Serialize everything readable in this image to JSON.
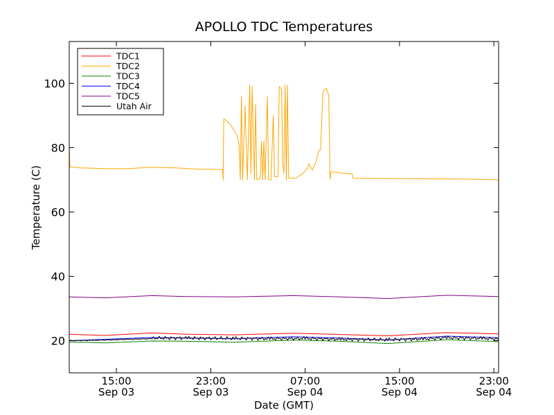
{
  "chart_data": {
    "type": "line",
    "title": "APOLLO TDC Temperatures",
    "xlabel": "Date (GMT)",
    "ylabel": "Temperature (C)",
    "x_unit": "hours since Sep 03 11:00 GMT",
    "xlim": [
      0,
      36.4
    ],
    "ylim": [
      10,
      113
    ],
    "yticks": [
      20,
      40,
      60,
      80,
      100
    ],
    "xticks": [
      {
        "x": 4,
        "time": "15:00",
        "date": "Sep 03"
      },
      {
        "x": 12,
        "time": "23:00",
        "date": "Sep 03"
      },
      {
        "x": 20,
        "time": "07:00",
        "date": "Sep 04"
      },
      {
        "x": 28,
        "time": "15:00",
        "date": "Sep 04"
      },
      {
        "x": 36,
        "time": "23:00",
        "date": "Sep 04"
      }
    ],
    "legend_position": "top-left",
    "series": [
      {
        "name": "TDC1",
        "color": "#ff0000",
        "points": [
          [
            0,
            22.0
          ],
          [
            3,
            21.6
          ],
          [
            7,
            22.4
          ],
          [
            10,
            22.0
          ],
          [
            14,
            21.8
          ],
          [
            19,
            22.3
          ],
          [
            23,
            21.9
          ],
          [
            27,
            21.5
          ],
          [
            32,
            22.5
          ],
          [
            36.4,
            22.1
          ]
        ]
      },
      {
        "name": "TDC2",
        "color": "#ffa500",
        "points": [
          [
            0,
            81.0
          ],
          [
            0.05,
            74.0
          ],
          [
            1,
            73.7
          ],
          [
            3,
            73.5
          ],
          [
            5,
            73.5
          ],
          [
            7,
            73.9
          ],
          [
            9,
            73.7
          ],
          [
            11,
            73.3
          ],
          [
            13,
            73.2
          ],
          [
            13.05,
            69.8
          ],
          [
            13.1,
            89.0
          ],
          [
            13.6,
            87.5
          ],
          [
            14.2,
            84.0
          ],
          [
            14.4,
            81.0
          ],
          [
            14.5,
            70.0
          ],
          [
            14.6,
            96.0
          ],
          [
            14.7,
            70.0
          ],
          [
            14.9,
            93.0
          ],
          [
            15.1,
            70.0
          ],
          [
            15.3,
            99.5
          ],
          [
            15.4,
            72.0
          ],
          [
            15.5,
            99.0
          ],
          [
            15.7,
            70.0
          ],
          [
            15.8,
            93.5
          ],
          [
            15.9,
            70.0
          ],
          [
            16.2,
            70.5
          ],
          [
            16.3,
            82.0
          ],
          [
            16.4,
            70.0
          ],
          [
            16.5,
            82.0
          ],
          [
            16.6,
            70.0
          ],
          [
            16.8,
            96.0
          ],
          [
            16.9,
            70.0
          ],
          [
            17.1,
            70.0
          ],
          [
            17.3,
            90.0
          ],
          [
            17.4,
            71.0
          ],
          [
            17.7,
            71.0
          ],
          [
            17.8,
            99.0
          ],
          [
            18.0,
            98.0
          ],
          [
            18.1,
            75.0
          ],
          [
            18.2,
            72.0
          ],
          [
            18.3,
            99.5
          ],
          [
            18.4,
            70.0
          ],
          [
            18.5,
            99.5
          ],
          [
            18.6,
            70.5
          ],
          [
            19.2,
            70.5
          ],
          [
            19.8,
            72.0
          ],
          [
            20.2,
            73.5
          ],
          [
            20.3,
            75.0
          ],
          [
            20.6,
            73.0
          ],
          [
            20.9,
            75.5
          ],
          [
            21.1,
            78.5
          ],
          [
            21.3,
            79.5
          ],
          [
            21.4,
            88.0
          ],
          [
            21.5,
            97.5
          ],
          [
            21.8,
            98.5
          ],
          [
            22.0,
            96.0
          ],
          [
            22.1,
            72.0
          ],
          [
            22.12,
            70.2
          ],
          [
            22.2,
            72.5
          ],
          [
            23.4,
            72.0
          ],
          [
            24.0,
            71.8
          ],
          [
            24.05,
            70.5
          ],
          [
            27,
            70.4
          ],
          [
            31,
            70.3
          ],
          [
            34,
            70.2
          ],
          [
            36.4,
            70.0
          ]
        ]
      },
      {
        "name": "TDC3",
        "color": "#008000",
        "points": [
          [
            0,
            19.6
          ],
          [
            3,
            19.3
          ],
          [
            7,
            19.9
          ],
          [
            10,
            19.8
          ],
          [
            14,
            19.5
          ],
          [
            19,
            20.2
          ],
          [
            23,
            19.8
          ],
          [
            27,
            19.1
          ],
          [
            32,
            20.3
          ],
          [
            36.4,
            19.7
          ]
        ]
      },
      {
        "name": "TDC4",
        "color": "#0000ff",
        "points": [
          [
            0,
            20.0
          ],
          [
            3,
            20.4
          ],
          [
            7,
            21.0
          ],
          [
            10,
            20.8
          ],
          [
            14,
            20.6
          ],
          [
            19,
            21.2
          ],
          [
            23,
            20.8
          ],
          [
            27,
            20.2
          ],
          [
            32,
            21.4
          ],
          [
            36.4,
            20.9
          ]
        ]
      },
      {
        "name": "TDC5",
        "color": "#800080",
        "points": [
          [
            0,
            33.6
          ],
          [
            3,
            33.3
          ],
          [
            7,
            34.0
          ],
          [
            10,
            33.7
          ],
          [
            14,
            33.6
          ],
          [
            19,
            34.0
          ],
          [
            23,
            33.6
          ],
          [
            27,
            33.1
          ],
          [
            32,
            34.1
          ],
          [
            36.4,
            33.7
          ]
        ]
      },
      {
        "name": "Utah Air",
        "color": "#000000",
        "noisy": true,
        "points": [
          [
            0,
            20.0
          ],
          [
            2,
            20.1
          ],
          [
            5,
            20.4
          ],
          [
            7,
            20.6
          ],
          [
            7.5,
            20.8
          ],
          [
            10,
            20.8
          ],
          [
            14,
            20.7
          ],
          [
            17,
            20.6
          ],
          [
            20,
            20.7
          ],
          [
            23,
            20.4
          ],
          [
            27,
            20.3
          ],
          [
            30,
            20.5
          ],
          [
            32,
            20.9
          ],
          [
            35,
            20.7
          ],
          [
            36.4,
            20.5
          ]
        ]
      }
    ]
  }
}
